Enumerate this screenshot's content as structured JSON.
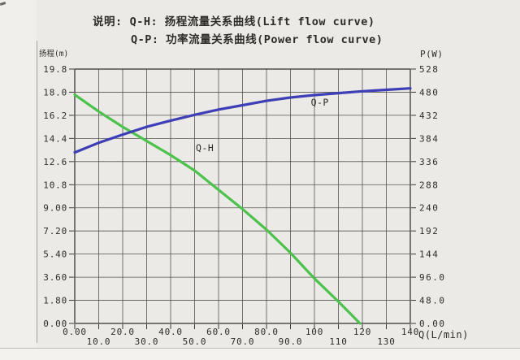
{
  "title": {
    "prefix": "说明:",
    "line1": "Q-H: 扬程流量关系曲线(Lift flow curve)",
    "line2": "Q-P: 功率流量关系曲线(Power flow curve)"
  },
  "colors": {
    "background": "#eceae6",
    "grid": "#55534f",
    "border": "#3a3835",
    "text": "#2e2c29",
    "qh_curve": "#4cc24c",
    "qp_curve": "#3e3eb6"
  },
  "chart_data": {
    "type": "line",
    "title": "",
    "grid": true,
    "x_axis": {
      "label": "Q(L/min)",
      "min": 0,
      "max": 140,
      "tick_values": [
        0,
        10,
        20,
        30,
        40,
        50,
        60,
        70,
        80,
        90,
        100,
        110,
        120,
        130,
        140
      ],
      "tick_labels": [
        "0.00",
        "10.0",
        "20.0",
        "30.0",
        "40.0",
        "50.0",
        "60.0",
        "70.0",
        "80.0",
        "90.0",
        "100",
        "110",
        "120",
        "130",
        "140"
      ],
      "stagger": true
    },
    "y_left": {
      "label": "扬程(m)",
      "min": 0,
      "max": 19.8,
      "tick_values": [
        19.8,
        18.0,
        16.2,
        14.4,
        12.6,
        10.8,
        9.0,
        7.2,
        5.4,
        3.6,
        1.8,
        0.0
      ],
      "tick_labels": [
        "19.8",
        "18.0",
        "16.2",
        "14.4",
        "12.6",
        "10.8",
        "9.00",
        "7.20",
        "5.40",
        "3.60",
        "1.80",
        "0.00"
      ]
    },
    "y_right": {
      "label": "P(W)",
      "min": 0,
      "max": 528,
      "tick_values": [
        528,
        480,
        432,
        384,
        336,
        288,
        240,
        192,
        144,
        96,
        48,
        0
      ],
      "tick_labels": [
        "528",
        "480",
        "432",
        "384",
        "336",
        "288",
        "240",
        "192",
        "144",
        "96.0",
        "48.0",
        "0.00"
      ]
    },
    "series": [
      {
        "name": "Q-H",
        "axis": "left",
        "color": "#4cc24c",
        "label_anchor": {
          "x": 50.5,
          "y": 13.4
        },
        "points": [
          [
            0,
            17.8
          ],
          [
            10,
            16.5
          ],
          [
            20,
            15.3
          ],
          [
            30,
            14.2
          ],
          [
            40,
            13.1
          ],
          [
            50,
            11.9
          ],
          [
            60,
            10.4
          ],
          [
            70,
            8.9
          ],
          [
            80,
            7.3
          ],
          [
            90,
            5.5
          ],
          [
            100,
            3.5
          ],
          [
            110,
            1.7
          ],
          [
            119,
            0.0
          ]
        ]
      },
      {
        "name": "Q-P",
        "axis": "right",
        "color": "#3e3eb6",
        "label_anchor": {
          "x": 98.5,
          "y": 452
        },
        "points": [
          [
            0,
            355
          ],
          [
            10,
            375
          ],
          [
            20,
            392
          ],
          [
            30,
            408
          ],
          [
            40,
            421
          ],
          [
            50,
            433
          ],
          [
            60,
            444
          ],
          [
            70,
            453
          ],
          [
            80,
            462
          ],
          [
            90,
            469
          ],
          [
            100,
            474
          ],
          [
            110,
            478
          ],
          [
            120,
            482
          ],
          [
            130,
            485
          ],
          [
            140,
            488
          ]
        ]
      }
    ]
  }
}
